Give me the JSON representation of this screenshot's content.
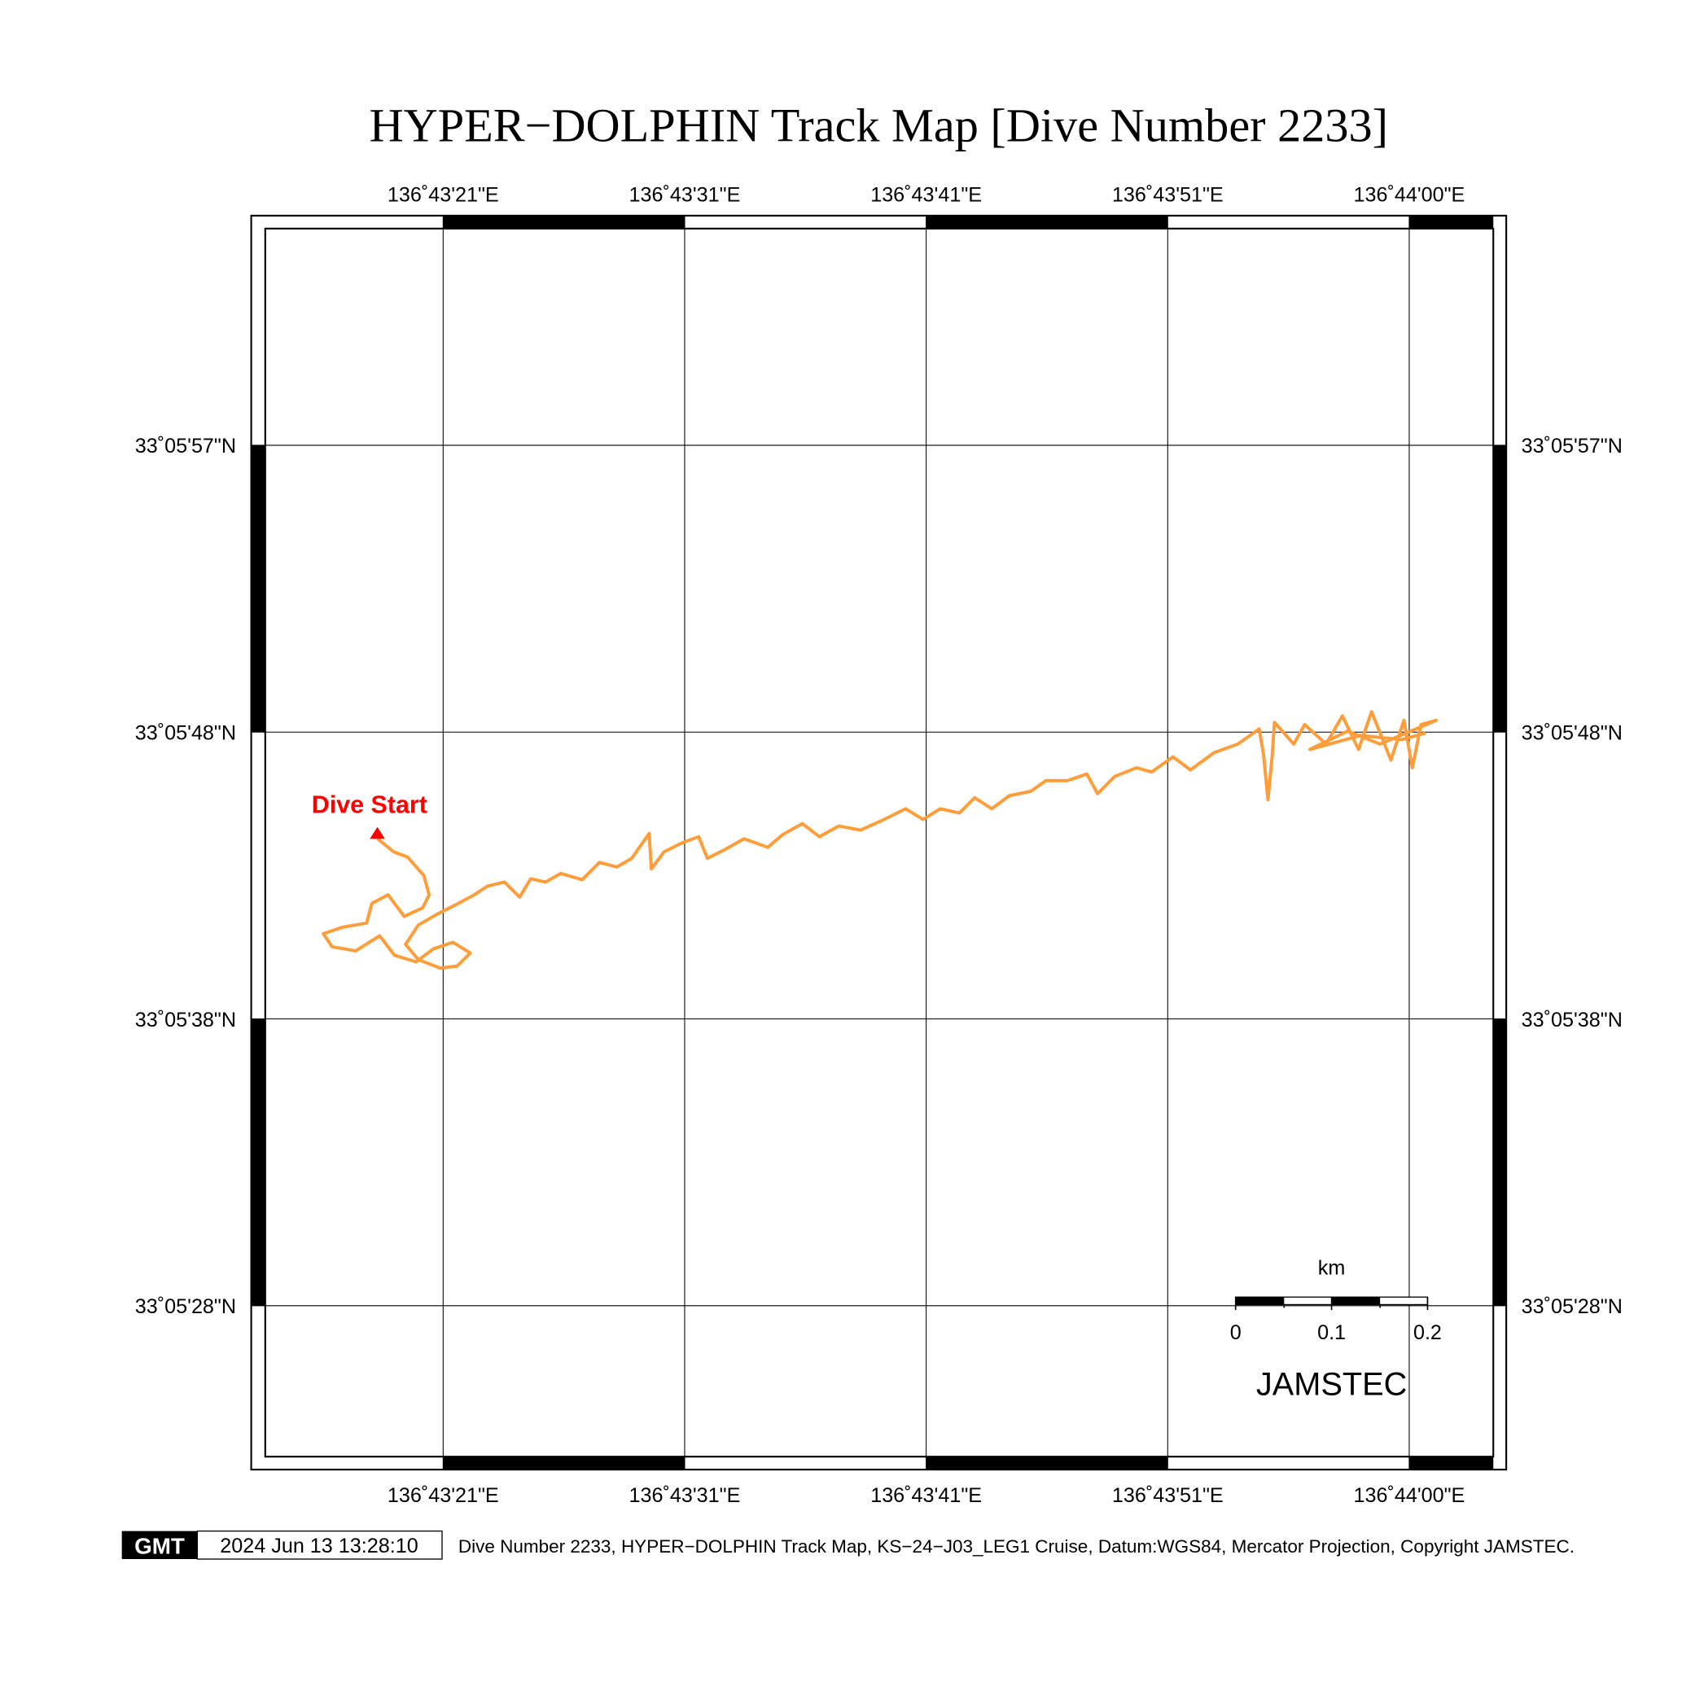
{
  "title": "HYPER−DOLPHIN Track Map [Dive Number 2233]",
  "axes": {
    "lon_ticks": [
      {
        "label": "136˚43'21\"E",
        "sec": 21
      },
      {
        "label": "136˚43'31\"E",
        "sec": 31
      },
      {
        "label": "136˚43'41\"E",
        "sec": 41
      },
      {
        "label": "136˚43'51\"E",
        "sec": 51
      },
      {
        "label": "136˚44'00\"E",
        "sec": 61
      }
    ],
    "lat_ticks": [
      {
        "label": "33˚05'57\"N",
        "sec": 57
      },
      {
        "label": "33˚05'48\"N",
        "sec": 47.33
      },
      {
        "label": "33˚05'38\"N",
        "sec": 37.67
      },
      {
        "label": "33˚05'28\"N",
        "sec": 28
      }
    ]
  },
  "track": {
    "color": "#FF9D3A",
    "lon_deg": 136,
    "lon_min": 43,
    "lat_deg": 33,
    "lat_min": 5,
    "points_sec": [
      [
        18.28,
        43.74
      ],
      [
        18.95,
        43.3
      ],
      [
        19.53,
        43.12
      ],
      [
        20.2,
        42.5
      ],
      [
        20.42,
        41.85
      ],
      [
        20.15,
        41.41
      ],
      [
        19.39,
        41.12
      ],
      [
        18.72,
        41.85
      ],
      [
        18.05,
        41.56
      ],
      [
        17.83,
        40.9
      ],
      [
        16.85,
        40.76
      ],
      [
        16.04,
        40.54
      ],
      [
        16.4,
        40.1
      ],
      [
        17.38,
        39.96
      ],
      [
        18.37,
        40.47
      ],
      [
        18.99,
        39.81
      ],
      [
        19.88,
        39.59
      ],
      [
        20.6,
        40.03
      ],
      [
        21.4,
        40.25
      ],
      [
        22.12,
        39.89
      ],
      [
        21.58,
        39.45
      ],
      [
        20.87,
        39.38
      ],
      [
        19.97,
        39.67
      ],
      [
        19.44,
        40.18
      ],
      [
        19.97,
        40.83
      ],
      [
        20.73,
        41.19
      ],
      [
        21.63,
        41.56
      ],
      [
        22.29,
        41.85
      ],
      [
        22.83,
        42.14
      ],
      [
        23.54,
        42.28
      ],
      [
        24.17,
        41.77
      ],
      [
        24.62,
        42.39
      ],
      [
        25.24,
        42.28
      ],
      [
        25.87,
        42.57
      ],
      [
        26.76,
        42.36
      ],
      [
        27.47,
        42.94
      ],
      [
        28.19,
        42.79
      ],
      [
        28.81,
        43.08
      ],
      [
        29.53,
        43.92
      ],
      [
        29.62,
        42.72
      ],
      [
        30.15,
        43.3
      ],
      [
        30.87,
        43.59
      ],
      [
        31.58,
        43.81
      ],
      [
        31.94,
        43.08
      ],
      [
        32.65,
        43.37
      ],
      [
        33.46,
        43.74
      ],
      [
        34.44,
        43.45
      ],
      [
        35.06,
        43.88
      ],
      [
        35.87,
        44.25
      ],
      [
        36.58,
        43.81
      ],
      [
        37.38,
        44.17
      ],
      [
        38.28,
        44.03
      ],
      [
        39.26,
        44.39
      ],
      [
        40.15,
        44.75
      ],
      [
        40.87,
        44.39
      ],
      [
        41.58,
        44.75
      ],
      [
        42.38,
        44.61
      ],
      [
        43.01,
        45.12
      ],
      [
        43.72,
        44.75
      ],
      [
        44.44,
        45.19
      ],
      [
        45.33,
        45.34
      ],
      [
        45.96,
        45.7
      ],
      [
        46.85,
        45.7
      ],
      [
        47.65,
        45.92
      ],
      [
        48.1,
        45.26
      ],
      [
        48.81,
        45.84
      ],
      [
        49.71,
        46.13
      ],
      [
        50.33,
        45.99
      ],
      [
        51.22,
        46.5
      ],
      [
        51.94,
        46.06
      ],
      [
        52.92,
        46.64
      ],
      [
        53.9,
        46.93
      ],
      [
        54.79,
        47.44
      ],
      [
        54.97,
        46.57
      ],
      [
        55.15,
        45.05
      ],
      [
        55.33,
        46.57
      ],
      [
        55.42,
        47.66
      ],
      [
        56.22,
        46.93
      ],
      [
        56.67,
        47.59
      ],
      [
        57.56,
        46.93
      ],
      [
        58.23,
        47.88
      ],
      [
        58.9,
        46.75
      ],
      [
        59.44,
        48.02
      ],
      [
        60.24,
        46.39
      ],
      [
        60.78,
        47.73
      ],
      [
        61.13,
        46.13
      ],
      [
        61.49,
        47.59
      ],
      [
        62.12,
        47.73
      ],
      [
        59.79,
        46.93
      ],
      [
        58.45,
        47.37
      ],
      [
        56.89,
        46.75
      ],
      [
        58.99,
        47.22
      ],
      [
        60.69,
        47.08
      ],
      [
        61.67,
        47.3
      ]
    ]
  },
  "dive_start": {
    "label": "Dive Start",
    "color": "#FF0000"
  },
  "scale_bar": {
    "unit": "km",
    "ticks": [
      "0",
      "0.1",
      "0.2"
    ]
  },
  "org_label": "JAMSTEC",
  "footer": {
    "logo": "GMT",
    "timestamp": "2024 Jun 13 13:28:10",
    "caption": "Dive Number 2233, HYPER−DOLPHIN Track Map, KS−24−J03_LEG1 Cruise, Datum:WGS84, Mercator Projection, Copyright JAMSTEC."
  }
}
